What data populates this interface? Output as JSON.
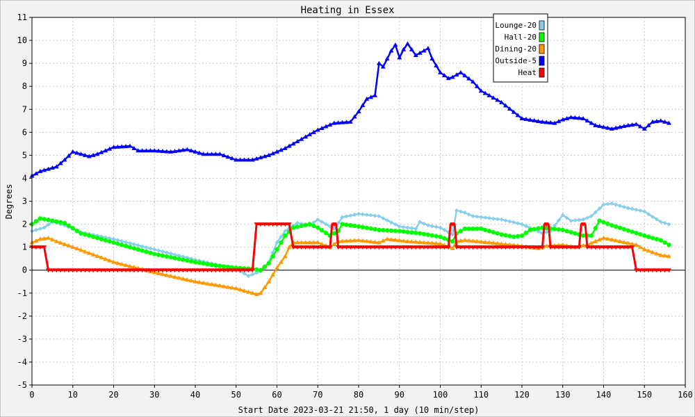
{
  "chart_data": {
    "type": "line",
    "title": "Heating in Essex",
    "xlabel": "Start Date 2023-03-21 21:50, 1 day (10 min/step)",
    "ylabel": "Degrees",
    "xlim": [
      0,
      160
    ],
    "ylim": [
      -5,
      11
    ],
    "x_ticks": [
      0,
      10,
      20,
      30,
      40,
      50,
      60,
      70,
      80,
      90,
      100,
      110,
      120,
      130,
      140,
      150,
      160
    ],
    "y_ticks": [
      -5,
      -4,
      -3,
      -2,
      -1,
      0,
      1,
      2,
      3,
      4,
      5,
      6,
      7,
      8,
      9,
      10,
      11
    ],
    "grid": true,
    "legend_position": "top-right",
    "series": [
      {
        "name": "Lounge-20",
        "color": "#87ceeb",
        "marker": "diamond",
        "points": [
          [
            0,
            1.7
          ],
          [
            3,
            1.85
          ],
          [
            5,
            2.1
          ],
          [
            8,
            1.95
          ],
          [
            12,
            1.65
          ],
          [
            20,
            1.35
          ],
          [
            30,
            0.9
          ],
          [
            40,
            0.45
          ],
          [
            45,
            0.25
          ],
          [
            50,
            0.05
          ],
          [
            53,
            -0.25
          ],
          [
            56,
            -0.05
          ],
          [
            58,
            0.35
          ],
          [
            60,
            1.2
          ],
          [
            62,
            1.7
          ],
          [
            65,
            2.05
          ],
          [
            68,
            1.95
          ],
          [
            70,
            2.2
          ],
          [
            72,
            2.0
          ],
          [
            74,
            1.8
          ],
          [
            76,
            2.3
          ],
          [
            80,
            2.45
          ],
          [
            85,
            2.35
          ],
          [
            90,
            1.9
          ],
          [
            94,
            1.8
          ],
          [
            95,
            2.1
          ],
          [
            97,
            1.95
          ],
          [
            100,
            1.85
          ],
          [
            103,
            1.55
          ],
          [
            104,
            2.6
          ],
          [
            106,
            2.5
          ],
          [
            108,
            2.35
          ],
          [
            115,
            2.2
          ],
          [
            120,
            2.0
          ],
          [
            125,
            1.6
          ],
          [
            127,
            1.7
          ],
          [
            130,
            2.4
          ],
          [
            132,
            2.15
          ],
          [
            135,
            2.2
          ],
          [
            137,
            2.35
          ],
          [
            140,
            2.85
          ],
          [
            142,
            2.9
          ],
          [
            146,
            2.7
          ],
          [
            150,
            2.55
          ],
          [
            154,
            2.1
          ],
          [
            156,
            2.0
          ]
        ]
      },
      {
        "name": "Hall-20",
        "color": "#00ff00",
        "marker": "circle",
        "points": [
          [
            0,
            2.0
          ],
          [
            2,
            2.25
          ],
          [
            5,
            2.15
          ],
          [
            8,
            2.05
          ],
          [
            12,
            1.6
          ],
          [
            20,
            1.2
          ],
          [
            30,
            0.7
          ],
          [
            40,
            0.35
          ],
          [
            45,
            0.2
          ],
          [
            50,
            0.1
          ],
          [
            54,
            0.05
          ],
          [
            56,
            0.0
          ],
          [
            58,
            0.3
          ],
          [
            60,
            0.9
          ],
          [
            62,
            1.5
          ],
          [
            64,
            1.85
          ],
          [
            68,
            2.0
          ],
          [
            70,
            1.85
          ],
          [
            73,
            1.5
          ],
          [
            75,
            1.7
          ],
          [
            76,
            2.0
          ],
          [
            80,
            1.9
          ],
          [
            85,
            1.75
          ],
          [
            90,
            1.7
          ],
          [
            95,
            1.6
          ],
          [
            100,
            1.45
          ],
          [
            103,
            1.25
          ],
          [
            104,
            1.6
          ],
          [
            106,
            1.8
          ],
          [
            110,
            1.8
          ],
          [
            115,
            1.55
          ],
          [
            118,
            1.45
          ],
          [
            120,
            1.5
          ],
          [
            122,
            1.75
          ],
          [
            125,
            1.85
          ],
          [
            130,
            1.75
          ],
          [
            133,
            1.6
          ],
          [
            135,
            1.5
          ],
          [
            137,
            1.5
          ],
          [
            139,
            2.15
          ],
          [
            142,
            1.95
          ],
          [
            150,
            1.5
          ],
          [
            154,
            1.3
          ],
          [
            156,
            1.1
          ]
        ]
      },
      {
        "name": "Dining-20",
        "color": "#ff9900",
        "marker": "triangle",
        "points": [
          [
            0,
            1.2
          ],
          [
            2,
            1.35
          ],
          [
            4,
            1.4
          ],
          [
            6,
            1.25
          ],
          [
            10,
            1.0
          ],
          [
            20,
            0.35
          ],
          [
            30,
            -0.1
          ],
          [
            40,
            -0.5
          ],
          [
            50,
            -0.8
          ],
          [
            53,
            -0.95
          ],
          [
            55,
            -1.05
          ],
          [
            56,
            -1.0
          ],
          [
            58,
            -0.5
          ],
          [
            60,
            0.1
          ],
          [
            62,
            0.6
          ],
          [
            63,
            1.0
          ],
          [
            64,
            1.2
          ],
          [
            70,
            1.2
          ],
          [
            73,
            1.0
          ],
          [
            75,
            1.25
          ],
          [
            80,
            1.3
          ],
          [
            85,
            1.2
          ],
          [
            87,
            1.35
          ],
          [
            92,
            1.25
          ],
          [
            100,
            1.15
          ],
          [
            103,
            0.95
          ],
          [
            104,
            1.25
          ],
          [
            106,
            1.3
          ],
          [
            112,
            1.2
          ],
          [
            120,
            1.05
          ],
          [
            124,
            0.95
          ],
          [
            126,
            1.05
          ],
          [
            130,
            1.1
          ],
          [
            133,
            1.0
          ],
          [
            136,
            1.1
          ],
          [
            140,
            1.4
          ],
          [
            144,
            1.25
          ],
          [
            148,
            1.1
          ],
          [
            150,
            0.9
          ],
          [
            154,
            0.65
          ],
          [
            156,
            0.6
          ]
        ]
      },
      {
        "name": "Outside-5",
        "color": "#0000ff",
        "marker": "triangle",
        "points": [
          [
            0,
            4.1
          ],
          [
            2,
            4.3
          ],
          [
            4,
            4.4
          ],
          [
            6,
            4.5
          ],
          [
            8,
            4.8
          ],
          [
            10,
            5.15
          ],
          [
            12,
            5.05
          ],
          [
            14,
            4.95
          ],
          [
            16,
            5.05
          ],
          [
            18,
            5.2
          ],
          [
            20,
            5.35
          ],
          [
            24,
            5.4
          ],
          [
            26,
            5.2
          ],
          [
            30,
            5.2
          ],
          [
            34,
            5.15
          ],
          [
            38,
            5.25
          ],
          [
            42,
            5.05
          ],
          [
            46,
            5.05
          ],
          [
            50,
            4.8
          ],
          [
            54,
            4.8
          ],
          [
            58,
            5.0
          ],
          [
            62,
            5.3
          ],
          [
            66,
            5.7
          ],
          [
            70,
            6.1
          ],
          [
            74,
            6.4
          ],
          [
            78,
            6.45
          ],
          [
            80,
            6.9
          ],
          [
            82,
            7.45
          ],
          [
            84,
            7.6
          ],
          [
            85,
            9.0
          ],
          [
            86,
            8.85
          ],
          [
            88,
            9.55
          ],
          [
            89,
            9.8
          ],
          [
            90,
            9.25
          ],
          [
            91,
            9.6
          ],
          [
            92,
            9.85
          ],
          [
            94,
            9.35
          ],
          [
            96,
            9.55
          ],
          [
            97,
            9.65
          ],
          [
            98,
            9.2
          ],
          [
            100,
            8.6
          ],
          [
            102,
            8.35
          ],
          [
            103,
            8.4
          ],
          [
            105,
            8.6
          ],
          [
            108,
            8.2
          ],
          [
            110,
            7.8
          ],
          [
            115,
            7.3
          ],
          [
            120,
            6.6
          ],
          [
            125,
            6.45
          ],
          [
            128,
            6.4
          ],
          [
            130,
            6.55
          ],
          [
            132,
            6.65
          ],
          [
            135,
            6.6
          ],
          [
            138,
            6.3
          ],
          [
            142,
            6.15
          ],
          [
            146,
            6.3
          ],
          [
            148,
            6.35
          ],
          [
            150,
            6.15
          ],
          [
            152,
            6.45
          ],
          [
            154,
            6.5
          ],
          [
            156,
            6.4
          ]
        ]
      },
      {
        "name": "Heat",
        "color": "#ff0000",
        "marker": "triangle-down",
        "points": [
          [
            0,
            1
          ],
          [
            3,
            1
          ],
          [
            4,
            0
          ],
          [
            54,
            0
          ],
          [
            55,
            2
          ],
          [
            63,
            2
          ],
          [
            64,
            1
          ],
          [
            73,
            1
          ],
          [
            73.5,
            2
          ],
          [
            74.5,
            2
          ],
          [
            75,
            1
          ],
          [
            102,
            1
          ],
          [
            102.5,
            2
          ],
          [
            103.5,
            2
          ],
          [
            104,
            1
          ],
          [
            125,
            1
          ],
          [
            125.5,
            2
          ],
          [
            126.5,
            2
          ],
          [
            127,
            1
          ],
          [
            134,
            1
          ],
          [
            134.5,
            2
          ],
          [
            135.5,
            2
          ],
          [
            136,
            1
          ],
          [
            147,
            1
          ],
          [
            148,
            0
          ],
          [
            156,
            0
          ]
        ]
      }
    ]
  }
}
